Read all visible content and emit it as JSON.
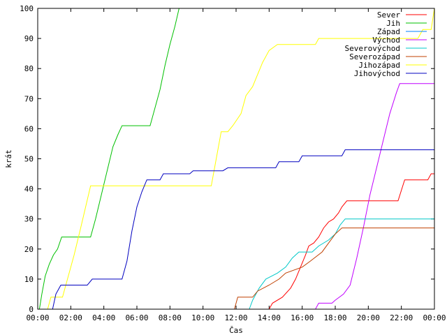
{
  "chart_data": {
    "type": "line",
    "xlabel": "Čas",
    "ylabel": "krát",
    "xlim": [
      0,
      24
    ],
    "ylim": [
      0,
      100
    ],
    "yticks": [
      0,
      10,
      20,
      30,
      40,
      50,
      60,
      70,
      80,
      90,
      100
    ],
    "xticks": [
      {
        "value": 0,
        "label": "00:00"
      },
      {
        "value": 2,
        "label": "02:00"
      },
      {
        "value": 4,
        "label": "04:00"
      },
      {
        "value": 6,
        "label": "06:00"
      },
      {
        "value": 8,
        "label": "08:00"
      },
      {
        "value": 10,
        "label": "10:00"
      },
      {
        "value": 12,
        "label": "12:00"
      },
      {
        "value": 14,
        "label": "14:00"
      },
      {
        "value": 16,
        "label": "16:00"
      },
      {
        "value": 18,
        "label": "18:00"
      },
      {
        "value": 20,
        "label": "20:00"
      },
      {
        "value": 22,
        "label": "22:00"
      },
      {
        "value": 24,
        "label": "00:00"
      }
    ],
    "grid": false,
    "legend_position": "top-right",
    "series": [
      {
        "name": "Sever",
        "color": "#ff0000",
        "points": [
          [
            14.0,
            0
          ],
          [
            14.2,
            2
          ],
          [
            14.8,
            4
          ],
          [
            15.3,
            7
          ],
          [
            15.6,
            10
          ],
          [
            15.9,
            14
          ],
          [
            16.2,
            18
          ],
          [
            16.4,
            21
          ],
          [
            16.7,
            22
          ],
          [
            17.0,
            24
          ],
          [
            17.3,
            27
          ],
          [
            17.6,
            29
          ],
          [
            17.9,
            30
          ],
          [
            18.2,
            32
          ],
          [
            18.4,
            34
          ],
          [
            18.7,
            36
          ],
          [
            21.8,
            36
          ],
          [
            22.2,
            43
          ],
          [
            23.6,
            43
          ],
          [
            23.8,
            45
          ],
          [
            24.0,
            45
          ]
        ]
      },
      {
        "name": "Jih",
        "color": "#00c000",
        "points": [
          [
            0.1,
            0
          ],
          [
            0.25,
            5
          ],
          [
            0.45,
            11
          ],
          [
            0.7,
            15
          ],
          [
            0.95,
            18
          ],
          [
            1.2,
            20
          ],
          [
            1.45,
            24
          ],
          [
            3.2,
            24
          ],
          [
            3.5,
            30
          ],
          [
            3.85,
            38
          ],
          [
            4.2,
            46
          ],
          [
            4.55,
            54
          ],
          [
            4.85,
            58
          ],
          [
            5.1,
            61
          ],
          [
            6.8,
            61
          ],
          [
            7.1,
            67
          ],
          [
            7.4,
            73
          ],
          [
            7.7,
            81
          ],
          [
            8.0,
            88
          ],
          [
            8.3,
            94
          ],
          [
            8.55,
            100
          ]
        ]
      },
      {
        "name": "Západ",
        "color": "#0080ff",
        "points": []
      },
      {
        "name": "Východ",
        "color": "#c000ff",
        "points": [
          [
            16.8,
            0
          ],
          [
            17.0,
            2
          ],
          [
            17.8,
            2
          ],
          [
            18.0,
            3
          ],
          [
            18.5,
            5
          ],
          [
            18.9,
            8
          ],
          [
            19.3,
            17
          ],
          [
            19.7,
            27
          ],
          [
            20.1,
            38
          ],
          [
            20.5,
            47
          ],
          [
            20.9,
            56
          ],
          [
            21.3,
            65
          ],
          [
            21.7,
            72
          ],
          [
            21.9,
            75
          ],
          [
            24.0,
            75
          ]
        ]
      },
      {
        "name": "Severovýchod",
        "color": "#00c8c8",
        "points": [
          [
            12.8,
            0
          ],
          [
            13.0,
            3
          ],
          [
            13.4,
            7
          ],
          [
            13.8,
            10
          ],
          [
            14.5,
            12
          ],
          [
            15.0,
            14
          ],
          [
            15.4,
            17
          ],
          [
            15.8,
            19
          ],
          [
            16.6,
            19
          ],
          [
            17.0,
            21
          ],
          [
            17.6,
            23
          ],
          [
            18.0,
            25
          ],
          [
            18.3,
            28
          ],
          [
            18.6,
            30
          ],
          [
            24.0,
            30
          ]
        ]
      },
      {
        "name": "Severozápad",
        "color": "#c04000",
        "points": [
          [
            11.9,
            0
          ],
          [
            12.1,
            4
          ],
          [
            13.0,
            4
          ],
          [
            13.3,
            6
          ],
          [
            14.0,
            8
          ],
          [
            14.6,
            10
          ],
          [
            15.0,
            12
          ],
          [
            16.0,
            14
          ],
          [
            16.5,
            16
          ],
          [
            17.2,
            19
          ],
          [
            17.6,
            22
          ],
          [
            18.0,
            25
          ],
          [
            18.4,
            27
          ],
          [
            24.0,
            27
          ]
        ]
      },
      {
        "name": "Jihozápad",
        "color": "#ffff00",
        "points": [
          [
            0.6,
            0
          ],
          [
            0.8,
            4
          ],
          [
            1.5,
            4
          ],
          [
            1.8,
            10
          ],
          [
            2.2,
            18
          ],
          [
            2.6,
            27
          ],
          [
            2.9,
            34
          ],
          [
            3.2,
            41
          ],
          [
            10.5,
            41
          ],
          [
            10.8,
            50
          ],
          [
            11.1,
            59
          ],
          [
            11.5,
            59
          ],
          [
            11.8,
            61
          ],
          [
            12.3,
            65
          ],
          [
            12.6,
            71
          ],
          [
            13.0,
            74
          ],
          [
            13.3,
            78
          ],
          [
            13.6,
            82
          ],
          [
            14.0,
            86
          ],
          [
            14.5,
            88
          ],
          [
            16.8,
            88
          ],
          [
            17.0,
            90
          ],
          [
            23.0,
            90
          ],
          [
            23.3,
            93
          ],
          [
            23.8,
            93
          ],
          [
            24.0,
            100
          ]
        ]
      },
      {
        "name": "Jihovýchod",
        "color": "#0000c0",
        "points": [
          [
            0.9,
            0
          ],
          [
            1.1,
            5
          ],
          [
            1.4,
            8
          ],
          [
            3.0,
            8
          ],
          [
            3.3,
            10
          ],
          [
            5.1,
            10
          ],
          [
            5.4,
            16
          ],
          [
            5.7,
            26
          ],
          [
            6.0,
            34
          ],
          [
            6.3,
            39
          ],
          [
            6.6,
            43
          ],
          [
            7.4,
            43
          ],
          [
            7.6,
            45
          ],
          [
            9.2,
            45
          ],
          [
            9.4,
            46
          ],
          [
            11.2,
            46
          ],
          [
            11.5,
            47
          ],
          [
            14.4,
            47
          ],
          [
            14.6,
            49
          ],
          [
            15.8,
            49
          ],
          [
            16.0,
            51
          ],
          [
            18.4,
            51
          ],
          [
            18.6,
            53
          ],
          [
            24.0,
            53
          ]
        ]
      }
    ]
  }
}
